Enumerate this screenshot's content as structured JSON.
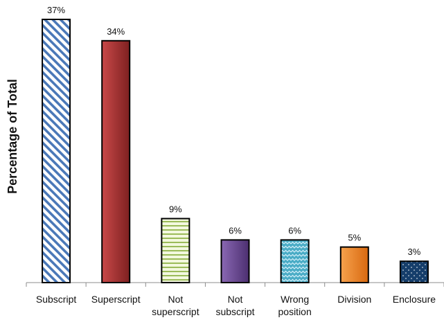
{
  "chart_data": {
    "type": "bar",
    "categories": [
      [
        "Subscript"
      ],
      [
        "Superscript"
      ],
      [
        "Not",
        "superscript"
      ],
      [
        "Not",
        "subscript"
      ],
      [
        "Wrong",
        "position"
      ],
      [
        "Division"
      ],
      [
        "Enclosure"
      ]
    ],
    "values": [
      37,
      34,
      9,
      6,
      6,
      5,
      3
    ],
    "data_labels": [
      "37%",
      "34%",
      "9%",
      "6%",
      "6%",
      "5%",
      "3%"
    ],
    "title": "",
    "xlabel": "",
    "ylabel": "Percentage of Total",
    "ylim": [
      0,
      37
    ],
    "grid": false,
    "legend": "none",
    "bar_styles": [
      {
        "pattern": "diagonal-stripes",
        "fill": "#ffffff",
        "accent": "#4a78b8"
      },
      {
        "pattern": "gradient",
        "fill": "#c33d3d",
        "accent": "#8e2424"
      },
      {
        "pattern": "horizontal-stripes",
        "fill": "#f3f8df",
        "accent": "#9bbb59"
      },
      {
        "pattern": "gradient",
        "fill": "#7f5ea8",
        "accent": "#5b3d82"
      },
      {
        "pattern": "zigzag",
        "fill": "#4aacc6",
        "accent": "#d7f1fb"
      },
      {
        "pattern": "gradient",
        "fill": "#f68b2d",
        "accent": "#d96d12"
      },
      {
        "pattern": "dots",
        "fill": "#163e6b",
        "accent": "#ffffff"
      }
    ]
  }
}
